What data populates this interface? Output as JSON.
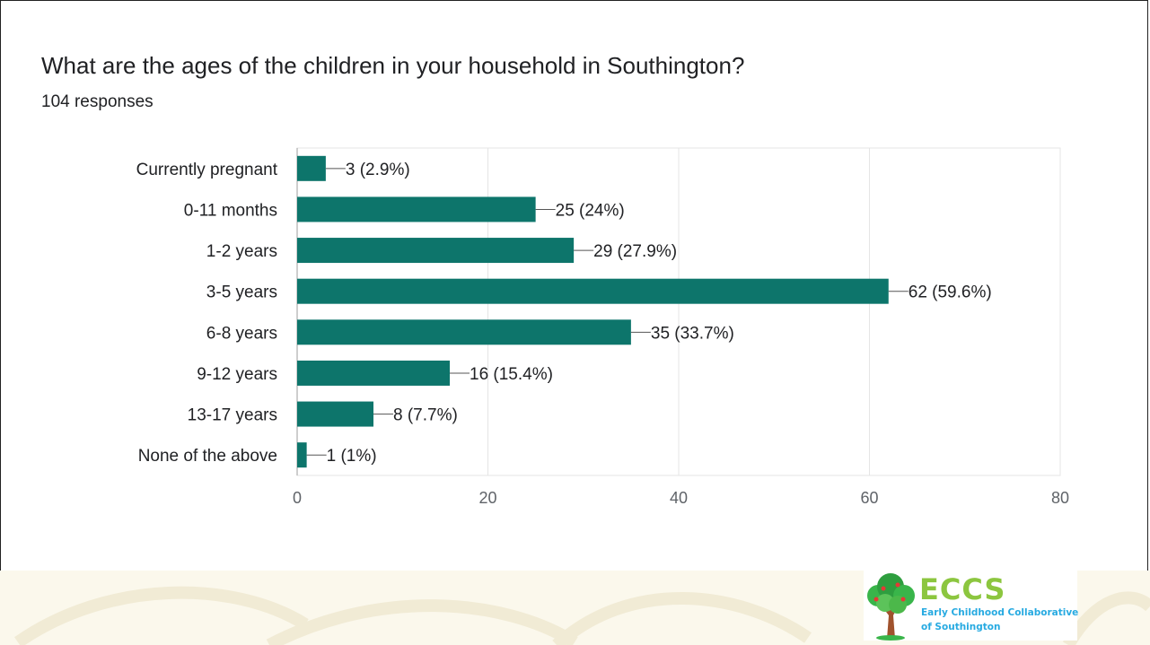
{
  "header": {
    "title": "What are the ages of the children in your household in Southington?",
    "subtitle": "104 responses"
  },
  "logo": {
    "icon": "tree-icon",
    "acronym": "ECCS",
    "line1": "Early Childhood Collaborative",
    "line2": "of Southington"
  },
  "colors": {
    "bar": "#0d756b",
    "grid": "#e5e5e5",
    "axis": "#9e9e9e",
    "text": "#202124",
    "tick_text": "#5f6368"
  },
  "chart_data": {
    "type": "bar",
    "orientation": "horizontal",
    "categories": [
      "Currently pregnant",
      "0-11 months",
      "1-2 years",
      "3-5 years",
      "6-8 years",
      "9-12 years",
      "13-17 years",
      "None of the above"
    ],
    "values": [
      3,
      25,
      29,
      62,
      35,
      16,
      8,
      1
    ],
    "data_labels": [
      "3 (2.9%)",
      "25 (24%)",
      "29 (27.9%)",
      "62 (59.6%)",
      "35 (33.7%)",
      "16 (15.4%)",
      "8 (7.7%)",
      "1 (1%)"
    ],
    "xlim": [
      0,
      80
    ],
    "xticks": [
      "0",
      "20",
      "40",
      "60",
      "80"
    ],
    "grid": true
  }
}
